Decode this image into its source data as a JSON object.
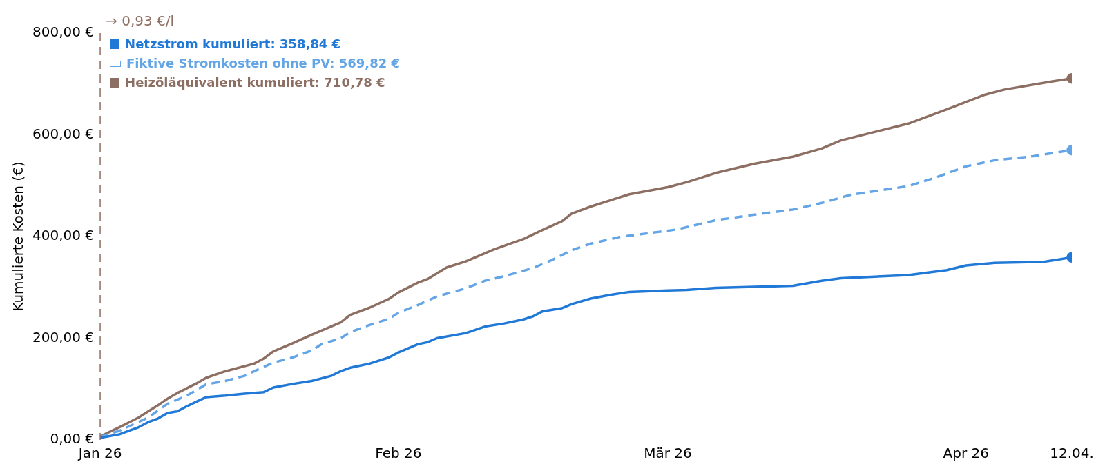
{
  "chart_data": {
    "type": "line",
    "ylabel": "Kumulierte Kosten (€)",
    "xlim": [
      "2026-01-01",
      "2026-04-12"
    ],
    "xticks": [
      {
        "value": "2026-01-01",
        "label": "Jan 26"
      },
      {
        "value": "2026-02-01",
        "label": "Feb 26"
      },
      {
        "value": "2026-03-01",
        "label": "Mär 26"
      },
      {
        "value": "2026-04-01",
        "label": "Apr 26"
      },
      {
        "value": "2026-04-12",
        "label": "12.04."
      }
    ],
    "ylim": [
      0,
      800
    ],
    "yticks": [
      {
        "value": 0,
        "label": "0,00 €"
      },
      {
        "value": 200,
        "label": "200,00 €"
      },
      {
        "value": 400,
        "label": "400,00 €"
      },
      {
        "value": 600,
        "label": "600,00 €"
      },
      {
        "value": 800,
        "label": "800,00 €"
      }
    ],
    "grid": false,
    "legend": "top left",
    "marker": "circle",
    "ref_lines": [
      {
        "axis": "x",
        "value": "2026-01-01",
        "label": "→ 0,93 €/l",
        "color": "#8d6e63",
        "line_style": "dashed"
      }
    ],
    "series": [
      {
        "name": "Netzstrom kumuliert: 358,84 €",
        "color": "#2079d6",
        "line_style": "solid",
        "marker": "none",
        "x": [
          "2026-01-01",
          "2026-01-03",
          "2026-01-05",
          "2026-01-06",
          "2026-01-07",
          "2026-01-08",
          "2026-01-09",
          "2026-01-10",
          "2026-01-11",
          "2026-01-12",
          "2026-01-14",
          "2026-01-16",
          "2026-01-18",
          "2026-01-19",
          "2026-01-21",
          "2026-01-23",
          "2026-01-25",
          "2026-01-26",
          "2026-01-27",
          "2026-01-29",
          "2026-01-31",
          "2026-02-01",
          "2026-02-03",
          "2026-02-04",
          "2026-02-05",
          "2026-02-08",
          "2026-02-10",
          "2026-02-12",
          "2026-02-14",
          "2026-02-15",
          "2026-02-16",
          "2026-02-18",
          "2026-02-19",
          "2026-02-21",
          "2026-02-23",
          "2026-02-25",
          "2026-03-01",
          "2026-03-03",
          "2026-03-06",
          "2026-03-10",
          "2026-03-14",
          "2026-03-17",
          "2026-03-19",
          "2026-03-26",
          "2026-03-30",
          "2026-04-01",
          "2026-04-04",
          "2026-04-09",
          "2026-04-12"
        ],
        "values": [
          4,
          11,
          25,
          35,
          42,
          53,
          56,
          66,
          75,
          84,
          87,
          91,
          94,
          103,
          110,
          116,
          126,
          135,
          142,
          150,
          162,
          172,
          188,
          192,
          200,
          210,
          223,
          229,
          237,
          243,
          253,
          259,
          267,
          278,
          285,
          291,
          294,
          295,
          299,
          301,
          303,
          313,
          318,
          324,
          334,
          343,
          348,
          350,
          359
        ]
      },
      {
        "name": "Fiktive Stromkosten ohne PV: 569,82 €",
        "color": "#64a5e6",
        "line_style": "dashed",
        "marker": "none",
        "x": [
          "2026-01-01",
          "2026-01-03",
          "2026-01-06",
          "2026-01-08",
          "2026-01-10",
          "2026-01-12",
          "2026-01-14",
          "2026-01-16",
          "2026-01-17",
          "2026-01-19",
          "2026-01-21",
          "2026-01-23",
          "2026-01-24",
          "2026-01-26",
          "2026-01-27",
          "2026-01-29",
          "2026-01-31",
          "2026-02-01",
          "2026-02-03",
          "2026-02-05",
          "2026-02-08",
          "2026-02-10",
          "2026-02-12",
          "2026-02-15",
          "2026-02-17",
          "2026-02-19",
          "2026-02-21",
          "2026-02-24",
          "2026-02-28",
          "2026-03-02",
          "2026-03-06",
          "2026-03-10",
          "2026-03-14",
          "2026-03-17",
          "2026-03-20",
          "2026-03-26",
          "2026-03-29",
          "2026-04-01",
          "2026-04-04",
          "2026-04-08",
          "2026-04-12"
        ],
        "values": [
          6,
          18,
          44,
          71,
          87,
          109,
          116,
          126,
          135,
          152,
          162,
          176,
          188,
          200,
          212,
          226,
          238,
          250,
          265,
          282,
          298,
          313,
          322,
          338,
          354,
          373,
          386,
          399,
          409,
          414,
          432,
          443,
          453,
          466,
          482,
          499,
          517,
          538,
          550,
          558,
          570
        ]
      },
      {
        "name": "Heizöläquivalent kumuliert: 710,78 €",
        "color": "#8d6e63",
        "line_style": "solid",
        "marker": "none",
        "x": [
          "2026-01-01",
          "2026-01-03",
          "2026-01-05",
          "2026-01-07",
          "2026-01-08",
          "2026-01-09",
          "2026-01-11",
          "2026-01-12",
          "2026-01-14",
          "2026-01-17",
          "2026-01-18",
          "2026-01-19",
          "2026-01-21",
          "2026-01-23",
          "2026-01-26",
          "2026-01-27",
          "2026-01-29",
          "2026-01-31",
          "2026-02-01",
          "2026-02-03",
          "2026-02-04",
          "2026-02-06",
          "2026-02-08",
          "2026-02-11",
          "2026-02-14",
          "2026-02-16",
          "2026-02-18",
          "2026-02-19",
          "2026-02-21",
          "2026-02-23",
          "2026-02-25",
          "2026-03-01",
          "2026-03-03",
          "2026-03-06",
          "2026-03-10",
          "2026-03-14",
          "2026-03-17",
          "2026-03-19",
          "2026-03-26",
          "2026-03-30",
          "2026-04-03",
          "2026-04-05",
          "2026-04-10",
          "2026-04-12"
        ],
        "values": [
          7,
          25,
          44,
          68,
          81,
          92,
          111,
          122,
          135,
          150,
          160,
          174,
          190,
          207,
          231,
          246,
          260,
          277,
          290,
          309,
          316,
          339,
          351,
          375,
          395,
          413,
          430,
          445,
          459,
          471,
          483,
          497,
          507,
          525,
          543,
          557,
          573,
          589,
          622,
          650,
          679,
          689,
          705,
          711
        ]
      },
      {
        "type": "scatter",
        "color": "#2079d6",
        "x": [
          "2026-04-12"
        ],
        "values": [
          359
        ]
      },
      {
        "type": "scatter",
        "color": "#64a5e6",
        "x": [
          "2026-04-12"
        ],
        "values": [
          570
        ]
      },
      {
        "type": "scatter",
        "color": "#8d6e63",
        "x": [
          "2026-04-12"
        ],
        "values": [
          711
        ]
      }
    ]
  }
}
